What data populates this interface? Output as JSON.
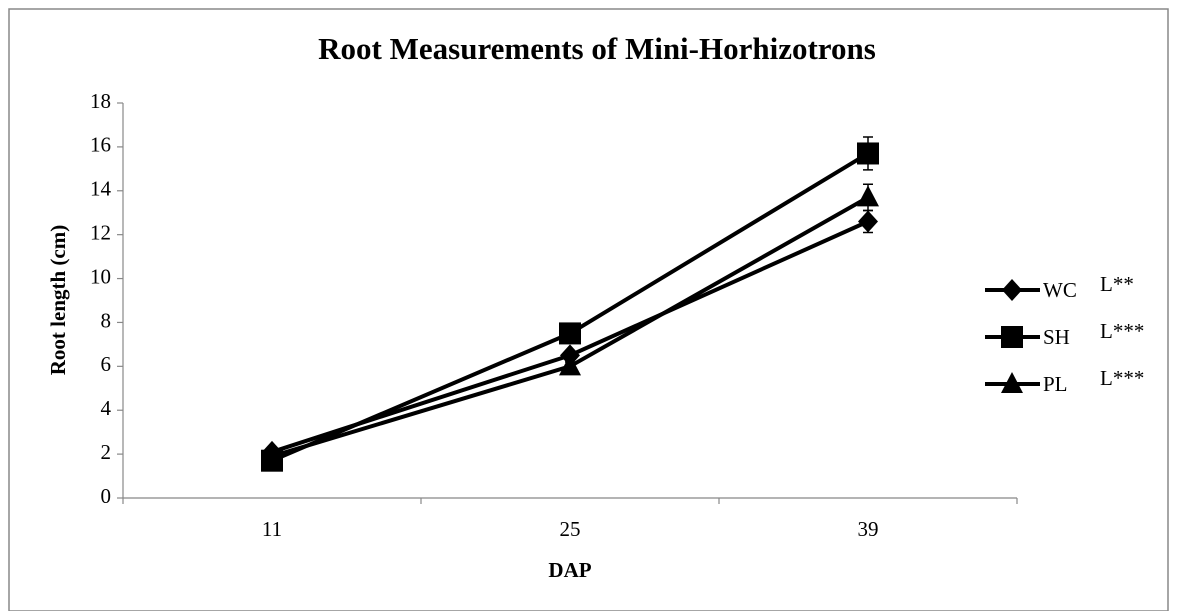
{
  "chart_data": {
    "type": "line",
    "title": "Root Measurements of Mini-Horhizotrons",
    "x_label": "DAP",
    "y_label": "Root length (cm)",
    "categories": [
      "11",
      "25",
      "39"
    ],
    "series": [
      {
        "name": "WC",
        "note": "L**",
        "color": "#000000",
        "marker": "diamond",
        "values": [
          2.1,
          6.5,
          12.6
        ],
        "errors": [
          0.1,
          0.2,
          0.5
        ]
      },
      {
        "name": "SH",
        "note": "L***",
        "color": "#000000",
        "marker": "square",
        "values": [
          1.7,
          7.5,
          15.7
        ],
        "errors": [
          0.1,
          0.2,
          0.75
        ]
      },
      {
        "name": "PL",
        "note": "L***",
        "color": "#000000",
        "marker": "triangle",
        "values": [
          1.9,
          6.0,
          13.7
        ],
        "errors": [
          0.1,
          0.2,
          0.6
        ]
      }
    ],
    "ylim": [
      0,
      18
    ],
    "yticks": [
      0,
      2,
      4,
      6,
      8,
      10,
      12,
      14,
      16,
      18
    ],
    "grid": false,
    "legend": "right"
  }
}
